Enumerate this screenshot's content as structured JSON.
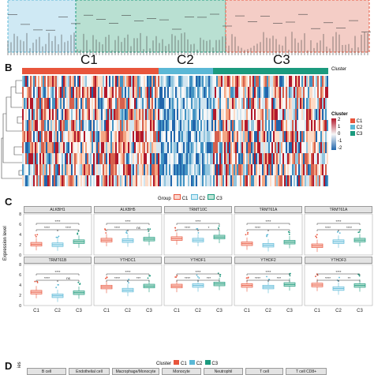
{
  "panels": {
    "b": "B",
    "c": "C",
    "d": "D"
  },
  "panel_b": {
    "clusters": [
      {
        "name": "C1",
        "color": "#e8553c"
      },
      {
        "name": "C2",
        "color": "#5bb8d6"
      },
      {
        "name": "C3",
        "color": "#1b9a7e"
      }
    ],
    "cluster_label": "Cluster",
    "legend": {
      "title": "Cluster",
      "ticks": [
        "2",
        "1",
        "0",
        "-1",
        "-2"
      ],
      "items": [
        "C1",
        "C2",
        "C3"
      ]
    }
  },
  "panel_c": {
    "legend_title": "Group",
    "groups": [
      "C1",
      "C2",
      "C3"
    ],
    "ylabel": "Expression level",
    "yticks": [
      "8",
      "6",
      "4",
      "2",
      "0"
    ],
    "facets": [
      {
        "name": "ALKBH1",
        "sig": [
          "****",
          "****",
          "****"
        ]
      },
      {
        "name": "ALKBH5",
        "sig": [
          "****",
          "ns",
          "****"
        ]
      },
      {
        "name": "TRMT10C",
        "sig": [
          "****",
          "*",
          "****"
        ]
      },
      {
        "name": "TRMT61A",
        "sig": [
          "****",
          "*",
          "****"
        ]
      },
      {
        "name": "TRMT61A",
        "sig": [
          "****",
          "****",
          "****"
        ]
      },
      {
        "name": "TRMT61B",
        "sig": [
          "****",
          "ns",
          "****"
        ]
      },
      {
        "name": "YTHDC1",
        "sig": [
          "****",
          "***",
          "****"
        ]
      },
      {
        "name": "YTHDF1",
        "sig": [
          "****",
          "***",
          "****"
        ]
      },
      {
        "name": "YTHDF2",
        "sig": [
          "****",
          "***",
          "****"
        ]
      },
      {
        "name": "YTHDF3",
        "sig": [
          "****",
          "**",
          "****"
        ]
      }
    ],
    "chart_data": [
      {
        "type": "box",
        "title": "ALKBH1",
        "categories": [
          "C1",
          "C2",
          "C3"
        ],
        "medians": [
          2.1,
          2.0,
          2.6
        ]
      },
      {
        "type": "box",
        "title": "ALKBH5",
        "categories": [
          "C1",
          "C2",
          "C3"
        ],
        "medians": [
          2.9,
          2.8,
          3.1
        ]
      },
      {
        "type": "box",
        "title": "TRMT10C",
        "categories": [
          "C1",
          "C2",
          "C3"
        ],
        "medians": [
          3.2,
          2.9,
          3.5
        ]
      },
      {
        "type": "box",
        "title": "TRMT61A",
        "categories": [
          "C1",
          "C2",
          "C3"
        ],
        "medians": [
          2.2,
          1.9,
          2.5
        ]
      },
      {
        "type": "box",
        "title": "TRMT61A",
        "categories": [
          "C1",
          "C2",
          "C3"
        ],
        "medians": [
          1.8,
          2.6,
          2.9
        ]
      },
      {
        "type": "box",
        "title": "TRMT61B",
        "categories": [
          "C1",
          "C2",
          "C3"
        ],
        "medians": [
          2.6,
          1.9,
          2.5
        ]
      },
      {
        "type": "box",
        "title": "YTHDC1",
        "categories": [
          "C1",
          "C2",
          "C3"
        ],
        "medians": [
          3.6,
          3.0,
          3.8
        ]
      },
      {
        "type": "box",
        "title": "YTHDF1",
        "categories": [
          "C1",
          "C2",
          "C3"
        ],
        "medians": [
          3.8,
          3.9,
          4.2
        ]
      },
      {
        "type": "box",
        "title": "YTHDF2",
        "categories": [
          "C1",
          "C2",
          "C3"
        ],
        "medians": [
          3.9,
          3.6,
          4.1
        ]
      },
      {
        "type": "box",
        "title": "YTHDF3",
        "categories": [
          "C1",
          "C2",
          "C3"
        ],
        "medians": [
          4.0,
          3.3,
          3.9
        ]
      }
    ]
  },
  "panel_d": {
    "legend_title": "Cluster",
    "groups": [
      "C1",
      "C2",
      "C3"
    ],
    "ylabel_partial": "ies",
    "facets": [
      {
        "name": "B cell",
        "sig": [
          "**"
        ]
      },
      {
        "name": "Endothelial cell",
        "sig": [
          "****"
        ]
      },
      {
        "name": "Macrophage/Monocyte",
        "sig": [
          "****"
        ]
      },
      {
        "name": "Monocyte",
        "sig": [
          "**"
        ]
      },
      {
        "name": "Neutrophil",
        "sig": [
          "****"
        ]
      },
      {
        "name": "T cell",
        "sig": [
          "*"
        ]
      },
      {
        "name": "T cell CD8+",
        "sig": [
          "**"
        ]
      }
    ]
  },
  "colors": {
    "c1": "#e8553c",
    "c2": "#5bb8d6",
    "c3": "#1b9a7e",
    "heat_red": "#b2182b",
    "heat_blue": "#2166ac"
  }
}
